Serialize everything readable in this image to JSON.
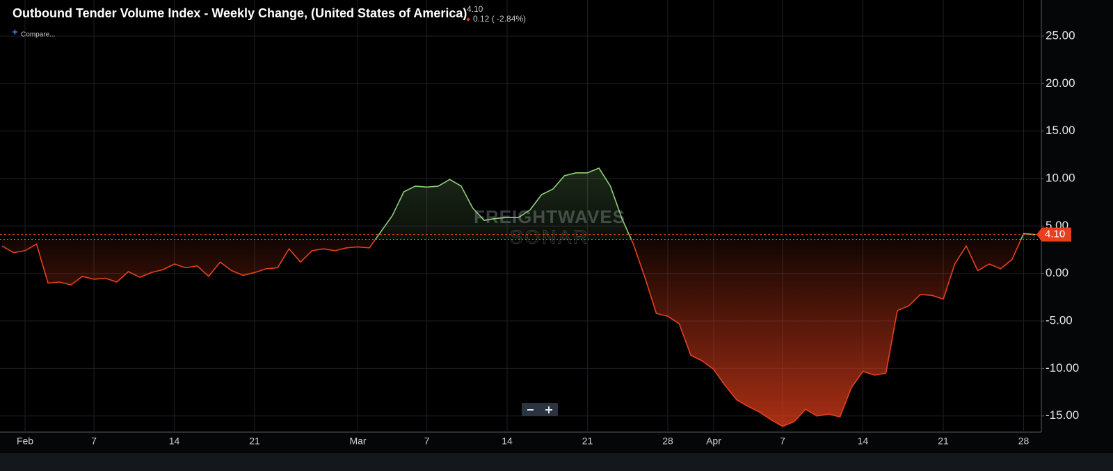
{
  "header": {
    "title": "Outbound Tender Volume Index - Weekly Change, (United States of America)",
    "value": "4.10",
    "change": "0.12 ( -2.84%)",
    "compare": "Compare..."
  },
  "watermark": {
    "brand": "FREIGHTWAVES",
    "product": "SONAR"
  },
  "chart_data": {
    "type": "area",
    "categories": [
      null,
      null,
      "Feb",
      null,
      null,
      null,
      null,
      null,
      "7",
      null,
      null,
      null,
      null,
      null,
      null,
      "14",
      null,
      null,
      null,
      null,
      null,
      null,
      "21",
      null,
      null,
      null,
      null,
      null,
      null,
      null,
      null,
      "Mar",
      null,
      null,
      null,
      null,
      null,
      "7",
      null,
      null,
      null,
      null,
      null,
      null,
      "14",
      null,
      null,
      null,
      null,
      null,
      null,
      "21",
      null,
      null,
      null,
      null,
      null,
      null,
      "28",
      null,
      null,
      null,
      "Apr",
      null,
      null,
      null,
      null,
      null,
      "7",
      null,
      null,
      null,
      null,
      null,
      null,
      "14",
      null,
      null,
      null,
      null,
      null,
      null,
      "21",
      null,
      null,
      null,
      null,
      null,
      null,
      "28",
      null
    ],
    "values": [
      2.9,
      2.2,
      2.4,
      3.1,
      -1.0,
      -0.9,
      -1.2,
      -0.3,
      -0.6,
      -0.5,
      -0.9,
      0.2,
      -0.4,
      0.1,
      0.4,
      1.0,
      0.6,
      0.8,
      -0.3,
      1.2,
      0.3,
      -0.2,
      0.1,
      0.5,
      0.6,
      2.6,
      1.2,
      2.4,
      2.6,
      2.4,
      2.7,
      2.8,
      2.7,
      4.4,
      6.1,
      8.6,
      9.2,
      9.1,
      9.2,
      9.9,
      9.2,
      6.9,
      5.6,
      5.8,
      5.9,
      5.9,
      6.7,
      8.3,
      8.9,
      10.3,
      10.6,
      10.6,
      11.1,
      9.2,
      5.8,
      3.1,
      -0.4,
      -4.2,
      -4.5,
      -5.3,
      -8.6,
      -9.2,
      -10.1,
      -11.8,
      -13.3,
      -14.0,
      -14.6,
      -15.4,
      -16.1,
      -15.6,
      -14.3,
      -15.0,
      -14.8,
      -15.1,
      -12.0,
      -10.3,
      -10.7,
      -10.5,
      -3.9,
      -3.4,
      -2.2,
      -2.3,
      -2.7,
      1.0,
      2.9,
      0.3,
      1.0,
      0.5,
      1.5,
      4.2,
      4.1
    ],
    "baseline": 3.6,
    "current": {
      "value": 4.1,
      "label": "4.10"
    },
    "up_color": "#8fd17e",
    "down_color": "#e8401c",
    "ylim": [
      -16.7,
      28.8
    ],
    "yticks": [
      {
        "value": -15,
        "label": "-15.00"
      },
      {
        "value": -10,
        "label": "-10.00"
      },
      {
        "value": -5,
        "label": "-5.00"
      },
      {
        "value": 0,
        "label": "0.00"
      },
      {
        "value": 5,
        "label": "5.00"
      },
      {
        "value": 10,
        "label": "10.00"
      },
      {
        "value": 15,
        "label": "15.00"
      },
      {
        "value": 20,
        "label": "20.00"
      },
      {
        "value": 25,
        "label": "25.00"
      }
    ],
    "grid": true
  }
}
